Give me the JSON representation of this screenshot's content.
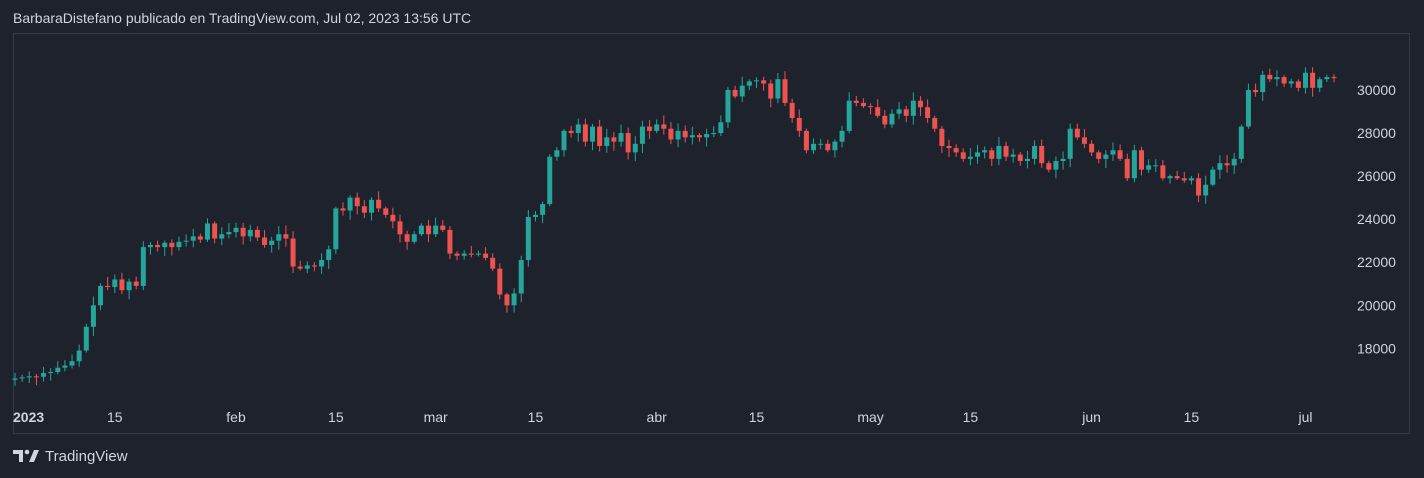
{
  "header": {
    "caption": "BarbaraDistefano publicado en TradingView.com, Jul 02, 2023 13:56 UTC"
  },
  "brand": {
    "name": "TradingView",
    "icon": "tradingview-logo-icon"
  },
  "colors": {
    "background": "#1e222d",
    "up": "#26a69a",
    "down": "#ef5350",
    "text": "#d1d4dc",
    "border": "#363a45"
  },
  "chart_data": {
    "type": "candlestick",
    "x_ticks": [
      {
        "label": "2023",
        "date": "2023-01-01",
        "bold": true
      },
      {
        "label": "15",
        "date": "2023-01-15"
      },
      {
        "label": "feb",
        "date": "2023-02-01"
      },
      {
        "label": "15",
        "date": "2023-02-15"
      },
      {
        "label": "mar",
        "date": "2023-03-01"
      },
      {
        "label": "15",
        "date": "2023-03-15"
      },
      {
        "label": "abr",
        "date": "2023-04-01"
      },
      {
        "label": "15",
        "date": "2023-04-15"
      },
      {
        "label": "may",
        "date": "2023-05-01"
      },
      {
        "label": "15",
        "date": "2023-05-15"
      },
      {
        "label": "jun",
        "date": "2023-06-01"
      },
      {
        "label": "15",
        "date": "2023-06-15"
      },
      {
        "label": "jul",
        "date": "2023-07-01"
      }
    ],
    "y_ticks": [
      "18000",
      "20000",
      "22000",
      "24000",
      "26000",
      "28000",
      "30000"
    ],
    "ylim": [
      15600,
      32600
    ],
    "closes": [
      16600,
      16650,
      16700,
      16680,
      16850,
      16900,
      17100,
      17200,
      17400,
      17900,
      19000,
      20000,
      20900,
      20850,
      21200,
      20700,
      21100,
      20900,
      22700,
      22800,
      22700,
      22900,
      22700,
      22950,
      23000,
      23200,
      23050,
      23800,
      23100,
      23300,
      23400,
      23600,
      23200,
      23500,
      23150,
      22800,
      23000,
      23300,
      23100,
      21800,
      21700,
      21850,
      21800,
      22100,
      22600,
      24500,
      24400,
      25000,
      24600,
      24300,
      24900,
      24500,
      24200,
      23900,
      23300,
      22950,
      23300,
      23700,
      23300,
      23700,
      23500,
      22400,
      22300,
      22400,
      22350,
      22400,
      22200,
      21700,
      20500,
      20000,
      20550,
      22100,
      24100,
      24200,
      24700,
      26900,
      27200,
      28100,
      28000,
      28400,
      27600,
      28300,
      27400,
      27800,
      27600,
      28000,
      27100,
      27500,
      28300,
      28100,
      28400,
      28200,
      27700,
      28100,
      27800,
      27900,
      27800,
      27950,
      28000,
      28500,
      30000,
      29700,
      30200,
      30400,
      30450,
      30300,
      29600,
      30500,
      29400,
      28700,
      28100,
      27200,
      27500,
      27500,
      27200,
      27600,
      28100,
      29500,
      29400,
      29250,
      29200,
      28800,
      28400,
      28900,
      29100,
      28800,
      29500,
      29200,
      28700,
      28200,
      27400,
      27300,
      27100,
      26800,
      26900,
      27100,
      27200,
      26800,
      27400,
      26900,
      27000,
      26700,
      26800,
      27400,
      26600,
      26300,
      26700,
      26800,
      28200,
      27800,
      27500,
      27100,
      26800,
      27000,
      27200,
      26800,
      25900,
      27200,
      26300,
      26500,
      26500,
      25900,
      26000,
      25900,
      25800,
      25900,
      25100,
      25600,
      26300,
      26600,
      26500,
      26800,
      28300,
      30000,
      29900,
      30700,
      30500,
      30600,
      30300,
      30400,
      30100,
      30800,
      30100,
      30500,
      30600,
      30550
    ]
  }
}
